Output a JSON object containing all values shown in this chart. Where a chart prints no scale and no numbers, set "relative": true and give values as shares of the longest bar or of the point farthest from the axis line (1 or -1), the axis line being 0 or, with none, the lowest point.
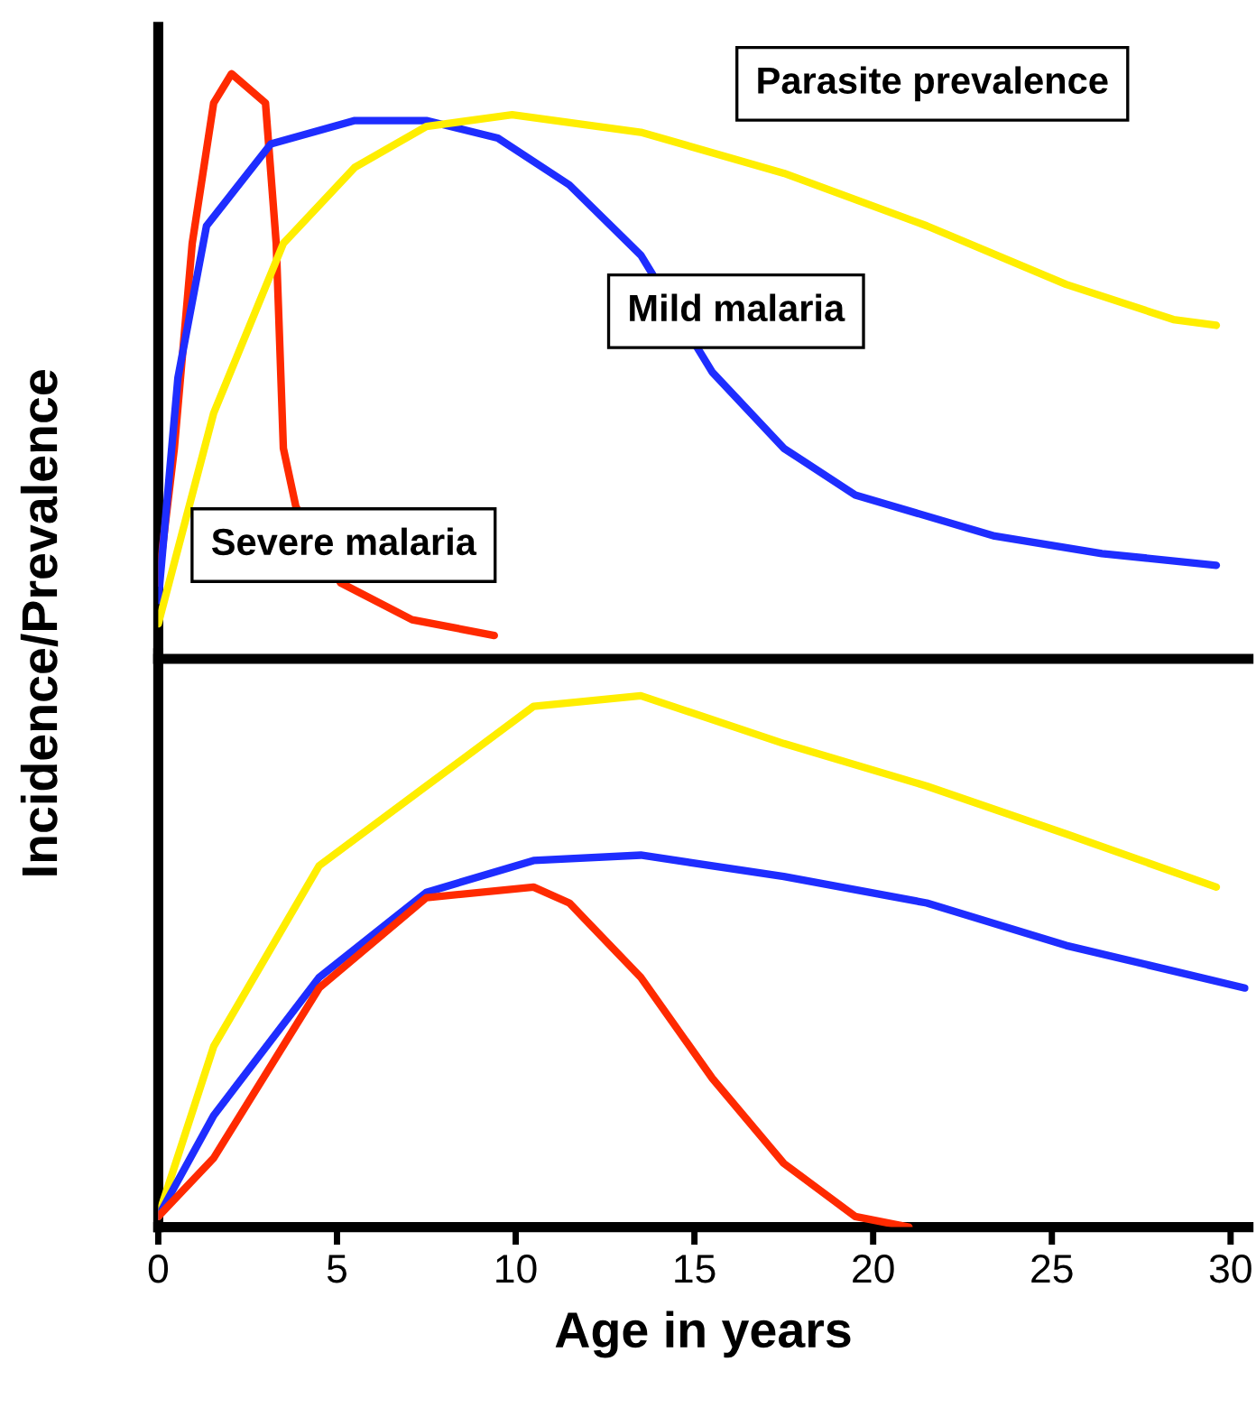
{
  "chart_data": [
    {
      "type": "line",
      "relative": true,
      "ylabel": "Incidence/Prevalence",
      "xlim": [
        0,
        30.5
      ],
      "tick_labels": false,
      "series": [
        {
          "name": "Severe malaria",
          "color": "#ff2a00",
          "x": [
            0,
            0.45,
            0.95,
            1.55,
            2.05,
            3.0,
            3.3,
            3.5,
            3.85,
            5.1,
            7.1,
            9.4
          ],
          "values": [
            0.13,
            0.36,
            0.71,
            0.95,
            1.0,
            0.95,
            0.71,
            0.36,
            0.26,
            0.13,
            0.067,
            0.04
          ]
        },
        {
          "name": "Mild malaria",
          "color": "#1e2dff",
          "x": [
            0,
            0.55,
            1.35,
            3.15,
            5.5,
            7.5,
            9.5,
            11.5,
            13.5,
            15.5,
            17.5,
            19.5,
            23.4,
            26.4,
            29.6
          ],
          "values": [
            0.1,
            0.48,
            0.74,
            0.88,
            0.92,
            0.92,
            0.89,
            0.81,
            0.69,
            0.49,
            0.36,
            0.28,
            0.21,
            0.18,
            0.16
          ]
        },
        {
          "name": "Parasite prevalence",
          "color": "#ffee00",
          "x": [
            0,
            1.55,
            3.5,
            5.5,
            7.5,
            9.9,
            13.5,
            17.5,
            21.5,
            25.4,
            28.4,
            29.6
          ],
          "values": [
            0.06,
            0.42,
            0.71,
            0.84,
            0.91,
            0.93,
            0.9,
            0.83,
            0.74,
            0.64,
            0.58,
            0.57
          ]
        }
      ]
    },
    {
      "type": "line",
      "relative": true,
      "xlabel": "Age in years",
      "xlim": [
        0,
        30.5
      ],
      "xticks": [
        0,
        5,
        10,
        15,
        20,
        25,
        30
      ],
      "tick_labels": "x",
      "series": [
        {
          "color": "#ffee00",
          "x": [
            0,
            1.55,
            4.5,
            7.5,
            10.5,
            13.5,
            17.5,
            21.5,
            25.4,
            29.6
          ],
          "values": [
            0.02,
            0.34,
            0.68,
            0.83,
            0.98,
            1.0,
            0.91,
            0.83,
            0.74,
            0.64
          ]
        },
        {
          "color": "#1e2dff",
          "x": [
            0,
            1.55,
            4.5,
            7.5,
            10.5,
            13.5,
            17.5,
            21.5,
            25.4,
            30.4
          ],
          "values": [
            0.02,
            0.21,
            0.47,
            0.63,
            0.69,
            0.7,
            0.66,
            0.61,
            0.53,
            0.45
          ]
        },
        {
          "color": "#ff2a00",
          "x": [
            0,
            1.55,
            4.5,
            7.5,
            10.5,
            11.5,
            13.5,
            15.5,
            17.5,
            19.5,
            21
          ],
          "values": [
            0.02,
            0.13,
            0.45,
            0.62,
            0.64,
            0.61,
            0.47,
            0.28,
            0.12,
            0.02,
            0.0
          ]
        }
      ]
    }
  ]
}
